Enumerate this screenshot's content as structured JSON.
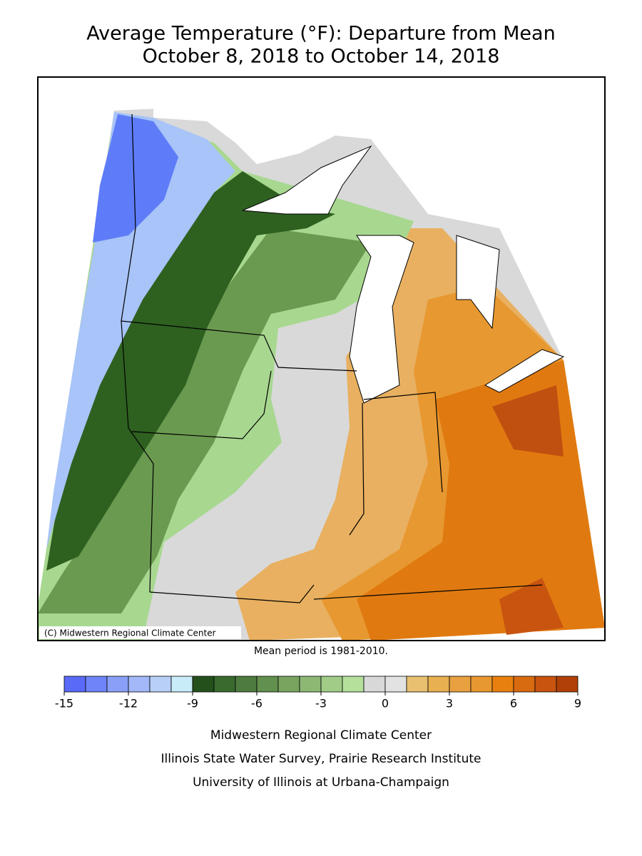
{
  "title": [
    "Average Temperature (°F): Departure from Mean",
    "October 8, 2018 to October 14, 2018"
  ],
  "map": {
    "copyright": "(C) Midwestern Regional Climate Center"
  },
  "note": "Mean period is 1981-2010.",
  "colorbar": {
    "range": [
      -15,
      9
    ],
    "colors": [
      "#5a6af8",
      "#6f84f8",
      "#8aa0f8",
      "#a2b8f8",
      "#b8d0f8",
      "#c8ecf8",
      "#24501c",
      "#3a6a2e",
      "#4e7c3e",
      "#62904e",
      "#78a460",
      "#8cb874",
      "#a0cc88",
      "#b4e09c",
      "#d8d8d8",
      "#e2e2e2",
      "#e8c070",
      "#e8b050",
      "#e8a040",
      "#e89830",
      "#e88010",
      "#d86a10",
      "#c85410",
      "#b04008"
    ],
    "ticks": [
      -15,
      -12,
      -9,
      -6,
      -3,
      0,
      3,
      6,
      9
    ]
  },
  "footer": [
    "Midwestern Regional Climate Center",
    "Illinois State Water Survey, Prairie Research Institute",
    "University of Illinois at Urbana-Champaign"
  ]
}
